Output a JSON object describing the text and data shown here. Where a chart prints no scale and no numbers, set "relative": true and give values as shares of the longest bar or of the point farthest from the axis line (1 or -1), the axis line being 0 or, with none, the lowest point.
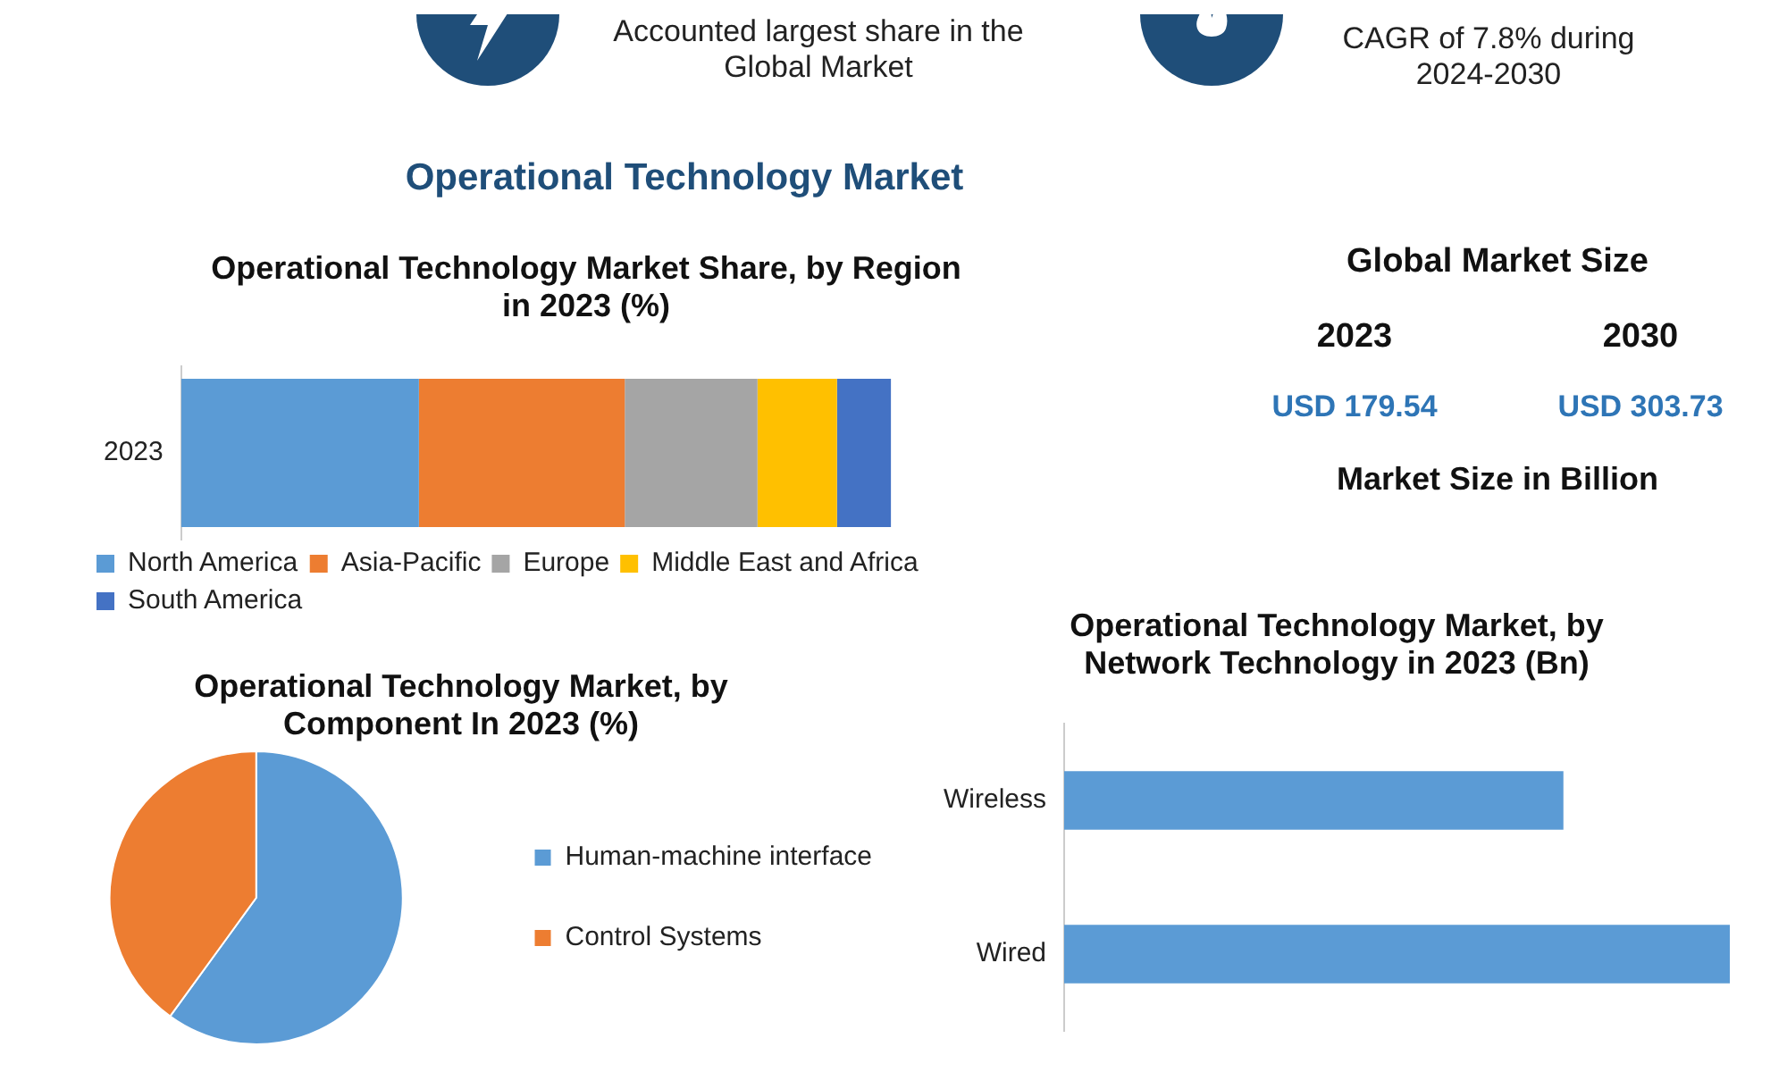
{
  "chart_data": [
    {
      "type": "other",
      "title": "Operational Technology Market",
      "annotations": [
        "Accounted largest share in the Global Market",
        "CAGR of 7.8% during 2024-2030"
      ]
    },
    {
      "type": "bar",
      "title": "Operational Technology Market Share, by Region in 2023 (%)",
      "orientation": "horizontal",
      "stacked": true,
      "relative": true,
      "legend": "bottom",
      "categories": [
        "2023"
      ],
      "series": [
        {
          "name": "North America",
          "color": "#5b9bd5",
          "values": [
            0.335
          ]
        },
        {
          "name": "Asia-Pacific",
          "color": "#ed7d31",
          "values": [
            0.29
          ]
        },
        {
          "name": "Europe",
          "color": "#a5a5a5",
          "values": [
            0.187
          ]
        },
        {
          "name": "Middle East and Africa",
          "color": "#ffc000",
          "values": [
            0.112
          ]
        },
        {
          "name": "South America",
          "color": "#4472c4",
          "values": [
            0.076
          ]
        }
      ]
    },
    {
      "type": "other",
      "title": "Global Market Size",
      "categories": [
        "2023",
        "2030"
      ],
      "annotations": [
        "USD 179.54",
        "USD 303.73",
        "Market Size in Billion"
      ]
    },
    {
      "type": "pie",
      "title": "Operational Technology Market, by Component In 2023 (%)",
      "categories": [
        "Human-machine interface",
        "Control Systems"
      ],
      "values": [
        60,
        40
      ],
      "colors": [
        "#5b9bd5",
        "#ed7d31"
      ],
      "legend": "right"
    },
    {
      "type": "bar",
      "title": "Operational Technology Market, by Network Technology in 2023 (Bn)",
      "orientation": "horizontal",
      "relative": true,
      "categories": [
        "Wireless",
        "Wired"
      ],
      "values": [
        0.75,
        1
      ],
      "color": "#5b9bd5"
    }
  ]
}
